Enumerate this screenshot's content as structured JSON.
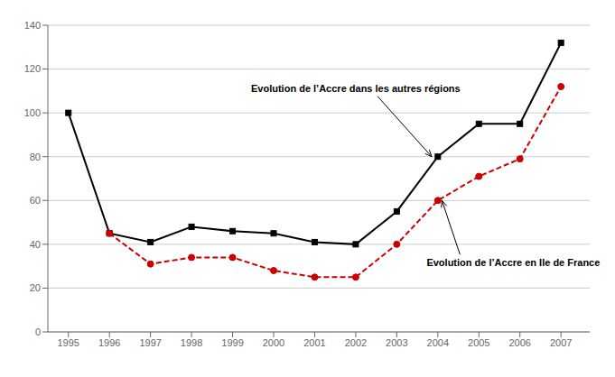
{
  "chart_data": {
    "type": "line",
    "x": [
      1995,
      1996,
      1997,
      1998,
      1999,
      2000,
      2001,
      2002,
      2003,
      2004,
      2005,
      2006,
      2007
    ],
    "series": [
      {
        "color": "#000000",
        "marker": "square",
        "line_style": "solid",
        "values": [
          100,
          45,
          41,
          48,
          46,
          45,
          41,
          40,
          55,
          80,
          95,
          95,
          132
        ]
      },
      {
        "color": "#cc0000",
        "marker": "circle",
        "line_style": "dashed",
        "values": [
          null,
          45,
          31,
          34,
          34,
          28,
          25,
          25,
          40,
          60,
          71,
          79,
          112
        ]
      }
    ],
    "annotations": [
      {
        "text": "Evolution de l’Accre dans les autres régions",
        "x": 2003.85,
        "y": 80
      },
      {
        "text": "Evolution de l’Accre en Ile de France",
        "x": 2004.1,
        "y": 60
      }
    ],
    "xlim": [
      1994.5,
      2007.7
    ],
    "xticks": [
      1995,
      1996,
      1997,
      1998,
      1999,
      2000,
      2001,
      2002,
      2003,
      2004,
      2005,
      2006,
      2007
    ],
    "ylim": [
      0,
      140
    ],
    "yticks": [
      0,
      20,
      40,
      60,
      80,
      100,
      120,
      140
    ],
    "grid": true
  }
}
